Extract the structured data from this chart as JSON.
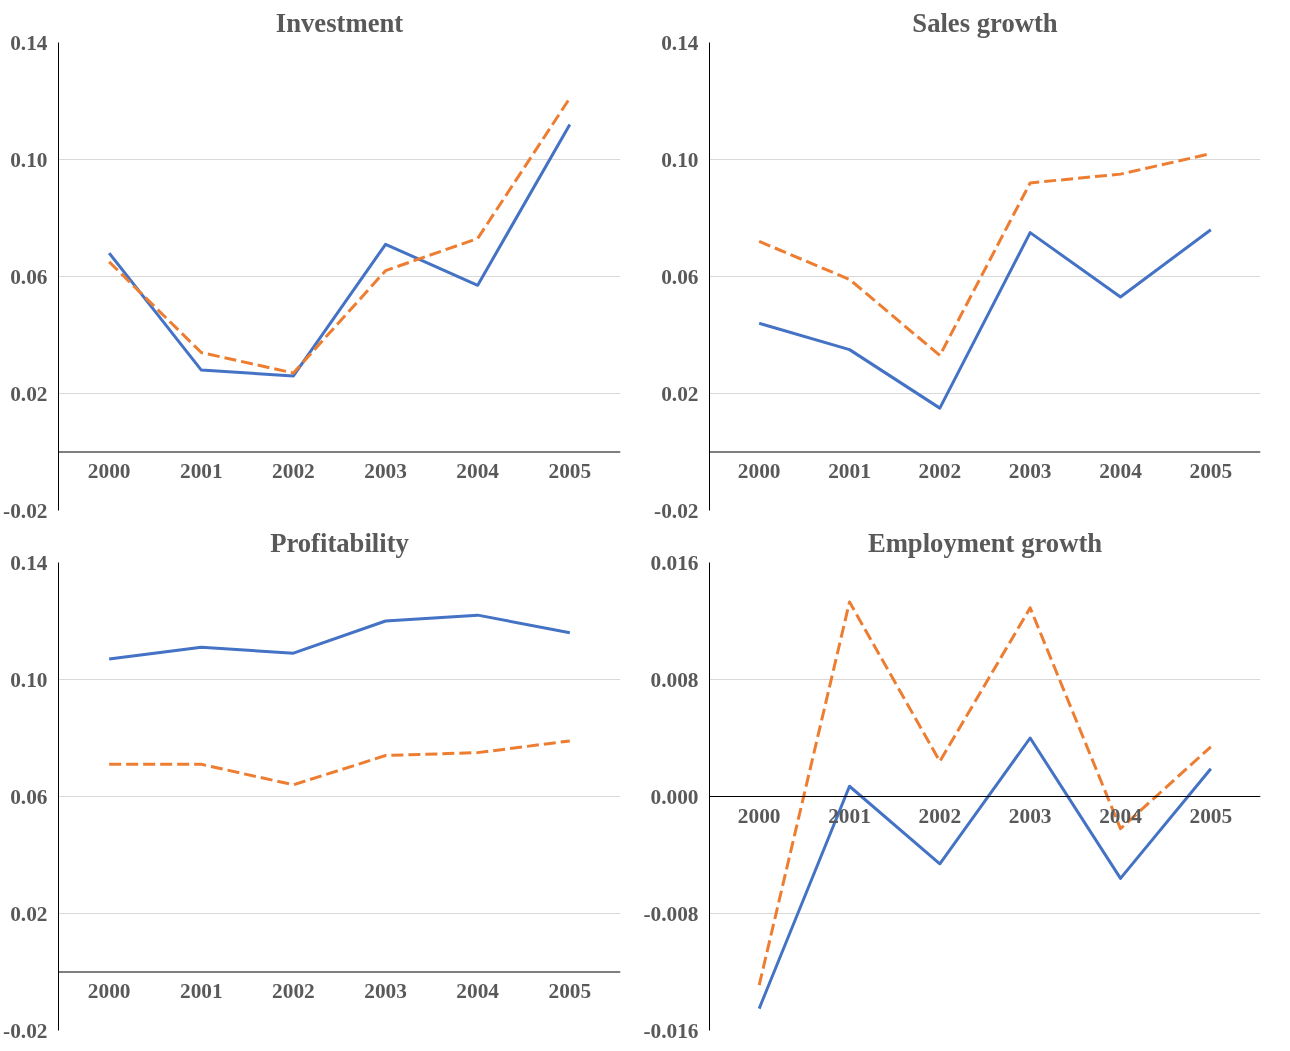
{
  "chart_data": [
    {
      "type": "line",
      "title": "Investment",
      "categories": [
        "2000",
        "2001",
        "2002",
        "2003",
        "2004",
        "2005"
      ],
      "grid": "y",
      "ylim": [
        -0.02,
        0.14
      ],
      "yticks": [
        {
          "value": -0.02,
          "label": "-0.02"
        },
        {
          "value": 0.02,
          "label": "0.02"
        },
        {
          "value": 0.06,
          "label": "0.06"
        },
        {
          "value": 0.1,
          "label": "0.10"
        },
        {
          "value": 0.14,
          "label": "0.14"
        }
      ],
      "series": [
        {
          "color": "#4472c4",
          "line_style": "solid",
          "values": [
            0.068,
            0.028,
            0.026,
            0.071,
            0.057,
            0.112
          ]
        },
        {
          "color": "#ed7d31",
          "line_style": "dashed",
          "values": [
            0.065,
            0.034,
            0.027,
            0.062,
            0.073,
            0.121
          ]
        }
      ]
    },
    {
      "type": "line",
      "title": "Sales growth",
      "categories": [
        "2000",
        "2001",
        "2002",
        "2003",
        "2004",
        "2005"
      ],
      "grid": "y",
      "ylim": [
        -0.02,
        0.14
      ],
      "yticks": [
        {
          "value": -0.02,
          "label": "-0.02"
        },
        {
          "value": 0.02,
          "label": "0.02"
        },
        {
          "value": 0.06,
          "label": "0.06"
        },
        {
          "value": 0.1,
          "label": "0.10"
        },
        {
          "value": 0.14,
          "label": "0.14"
        }
      ],
      "series": [
        {
          "color": "#4472c4",
          "line_style": "solid",
          "values": [
            0.044,
            0.035,
            0.015,
            0.075,
            0.053,
            0.076
          ]
        },
        {
          "color": "#ed7d31",
          "line_style": "dashed",
          "values": [
            0.072,
            0.059,
            0.033,
            0.092,
            0.095,
            0.102
          ]
        }
      ]
    },
    {
      "type": "line",
      "title": "Profitability",
      "categories": [
        "2000",
        "2001",
        "2002",
        "2003",
        "2004",
        "2005"
      ],
      "grid": "y",
      "ylim": [
        -0.02,
        0.14
      ],
      "yticks": [
        {
          "value": -0.02,
          "label": "-0.02"
        },
        {
          "value": 0.02,
          "label": "0.02"
        },
        {
          "value": 0.06,
          "label": "0.06"
        },
        {
          "value": 0.1,
          "label": "0.10"
        },
        {
          "value": 0.14,
          "label": "0.14"
        }
      ],
      "series": [
        {
          "color": "#4472c4",
          "line_style": "solid",
          "values": [
            0.107,
            0.111,
            0.109,
            0.12,
            0.122,
            0.116
          ]
        },
        {
          "color": "#ed7d31",
          "line_style": "dashed",
          "values": [
            0.071,
            0.071,
            0.064,
            0.074,
            0.075,
            0.079
          ]
        }
      ]
    },
    {
      "type": "line",
      "title": "Employment growth",
      "categories": [
        "2000",
        "2001",
        "2002",
        "2003",
        "2004",
        "2005"
      ],
      "grid": "y",
      "ylim": [
        -0.016,
        0.016
      ],
      "yticks": [
        {
          "value": -0.016,
          "label": "-0.016"
        },
        {
          "value": -0.008,
          "label": "-0.008"
        },
        {
          "value": 0,
          "label": "0.000"
        },
        {
          "value": 0.008,
          "label": "0.008"
        },
        {
          "value": 0.016,
          "label": "0.016"
        }
      ],
      "series": [
        {
          "color": "#4472c4",
          "line_style": "solid",
          "values": [
            -0.0145,
            0.0007,
            -0.0046,
            0.004,
            -0.0056,
            0.0019
          ]
        },
        {
          "color": "#ed7d31",
          "line_style": "dashed",
          "values": [
            -0.0129,
            0.0133,
            0.0024,
            0.0129,
            -0.0022,
            0.0034
          ]
        }
      ]
    }
  ]
}
